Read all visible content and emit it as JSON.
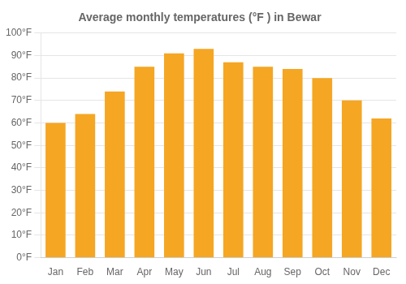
{
  "chart_data": {
    "type": "bar",
    "title": "Average monthly temperatures (°F ) in Bewar",
    "categories": [
      "Jan",
      "Feb",
      "Mar",
      "Apr",
      "May",
      "Jun",
      "Jul",
      "Aug",
      "Sep",
      "Oct",
      "Nov",
      "Dec"
    ],
    "values": [
      60,
      64,
      74,
      85,
      91,
      93,
      87,
      85,
      84,
      80,
      70,
      62
    ],
    "color": "#F5A623",
    "ylim": [
      0,
      100
    ],
    "yticks": [
      {
        "value": 0,
        "label": "0°F"
      },
      {
        "value": 10,
        "label": "10°F"
      },
      {
        "value": 20,
        "label": "20°F"
      },
      {
        "value": 30,
        "label": "30°F"
      },
      {
        "value": 40,
        "label": "40°F"
      },
      {
        "value": 50,
        "label": "50°F"
      },
      {
        "value": 60,
        "label": "60°F"
      },
      {
        "value": 70,
        "label": "70°F"
      },
      {
        "value": 80,
        "label": "80°F"
      },
      {
        "value": 90,
        "label": "90°F"
      },
      {
        "value": 100,
        "label": "100°F"
      }
    ],
    "grid": true
  }
}
